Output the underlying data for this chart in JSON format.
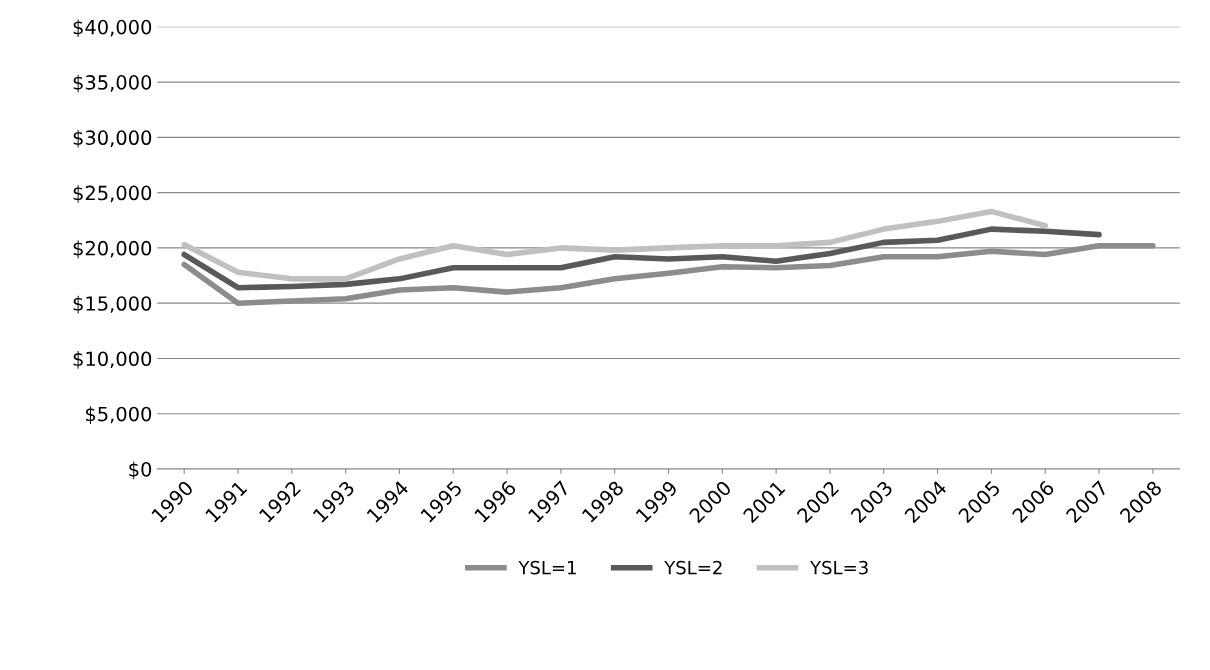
{
  "chart_data": {
    "type": "line",
    "categories": [
      "1990",
      "1991",
      "1992",
      "1993",
      "1994",
      "1995",
      "1996",
      "1997",
      "1998",
      "1999",
      "2000",
      "2001",
      "2002",
      "2003",
      "2004",
      "2005",
      "2006",
      "2007",
      "2008"
    ],
    "series": [
      {
        "name": "YSL=1",
        "color": "#8c8c8c",
        "values": [
          18500,
          15000,
          15200,
          15400,
          16200,
          16400,
          16000,
          16400,
          17200,
          17700,
          18300,
          18200,
          18400,
          19200,
          19200,
          19700,
          19400,
          20200,
          20200
        ]
      },
      {
        "name": "YSL=2",
        "color": "#595959",
        "values": [
          19400,
          16400,
          16500,
          16700,
          17200,
          18200,
          18200,
          18200,
          19200,
          19000,
          19200,
          18800,
          19500,
          20500,
          20700,
          21700,
          21500,
          21200,
          null
        ]
      },
      {
        "name": "YSL=3",
        "color": "#c0c0c0",
        "values": [
          20300,
          17800,
          17200,
          17200,
          19000,
          20200,
          19400,
          20000,
          19800,
          20000,
          20200,
          20200,
          20500,
          21700,
          22400,
          23300,
          22000,
          null,
          null
        ]
      }
    ],
    "ylim": [
      0,
      40000
    ],
    "yticks": [
      {
        "value": 0,
        "label": "$0"
      },
      {
        "value": 5000,
        "label": "$5,000"
      },
      {
        "value": 10000,
        "label": "$10,000"
      },
      {
        "value": 15000,
        "label": "$15,000"
      },
      {
        "value": 20000,
        "label": "$20,000"
      },
      {
        "value": 25000,
        "label": "$25,000"
      },
      {
        "value": 30000,
        "label": "$30,000"
      },
      {
        "value": 35000,
        "label": "$35,000"
      },
      {
        "value": 40000,
        "label": "$40,000"
      }
    ],
    "grid": "y",
    "legend": "bottom",
    "marker": "none",
    "line_style": "solid"
  }
}
